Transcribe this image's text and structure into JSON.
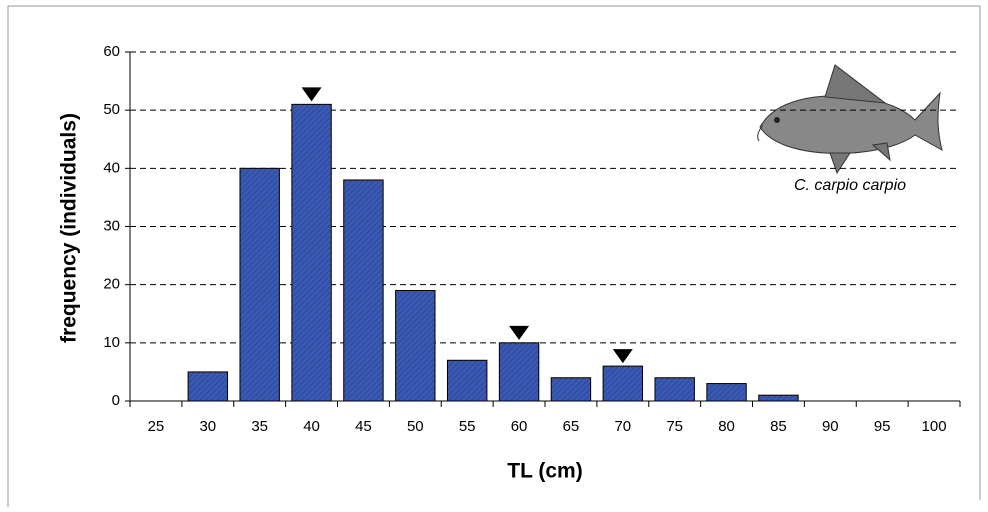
{
  "chart_data": {
    "type": "bar",
    "categories": [
      "25",
      "30",
      "35",
      "40",
      "45",
      "50",
      "55",
      "60",
      "65",
      "70",
      "75",
      "80",
      "85",
      "90",
      "95",
      "100"
    ],
    "values": [
      0,
      5,
      40,
      51,
      38,
      19,
      7,
      10,
      4,
      6,
      4,
      3,
      1,
      0,
      0,
      0
    ],
    "color": "#3a59b4",
    "ylim": [
      0,
      60
    ],
    "yticks": [
      0,
      10,
      20,
      30,
      40,
      50,
      60
    ],
    "grid": true,
    "xlabel": "TL (cm)",
    "ylabel": "frequency (individuals)",
    "annotation": "C. carpio carpio",
    "markers": [
      "40",
      "60",
      "70"
    ]
  }
}
